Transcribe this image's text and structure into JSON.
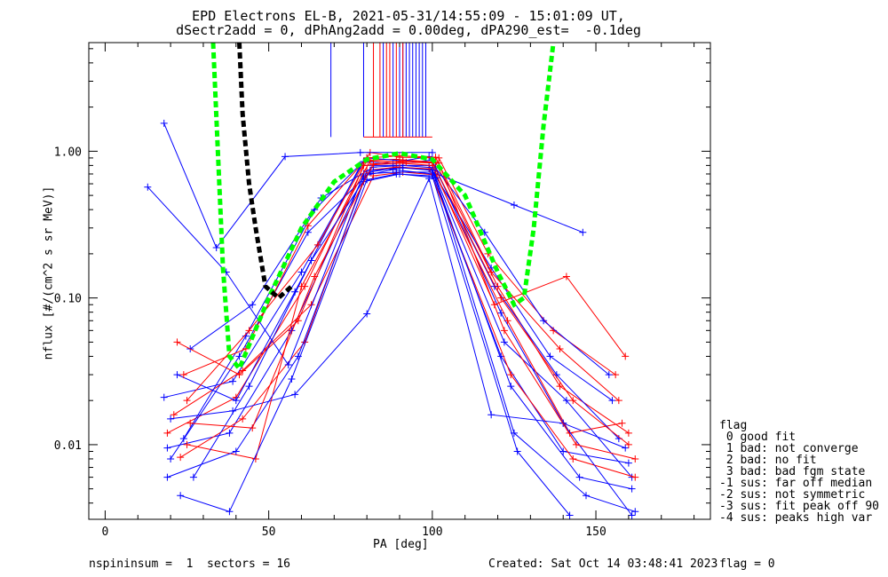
{
  "title": {
    "line1": "EPD Electrons EL-B, 2021-05-31/14:55:09 - 15:01:09 UT,",
    "line2": "dSectr2add = 0, dPhAng2add = 0.00deg, dPA290_est=  -0.1deg"
  },
  "footer": {
    "left": "nspininsum =  1  sectors = 16",
    "created": "Created: Sat Oct 14 03:48:41 2023",
    "flag": "flag = 0"
  },
  "legend": {
    "title": "flag",
    "items": [
      " 0 good fit",
      " 1 bad: not converge",
      " 2 bad: no fit",
      " 3 bad: bad fgm state",
      "-1 sus: far off median",
      "-2 sus: not symmetric",
      "-3 sus: fit peak off 90",
      "-4 sus: peaks high var"
    ]
  },
  "colors": {
    "series_blue": "#0000ff",
    "series_red": "#ff0000",
    "fit_green": "#00ff00",
    "fit_black": "#000000"
  },
  "chart_data": {
    "type": "line",
    "xlabel": "PA [deg]",
    "ylabel": "nflux [#/(cm^2 s sr MeV)]",
    "xlim": [
      -5,
      185
    ],
    "ylim": [
      0.0031,
      5.5
    ],
    "yscale": "log",
    "xticks": [
      0,
      50,
      100,
      150
    ],
    "yticks": [
      {
        "value": 1.0,
        "label": "1.00"
      },
      {
        "value": 0.1,
        "label": "0.10"
      },
      {
        "value": 0.01,
        "label": "0.01"
      }
    ],
    "grid": false,
    "legend_position": "right-bottom outside",
    "blue_spikes_x": [
      69,
      79,
      85,
      88,
      90,
      91,
      92,
      93,
      94,
      95,
      96,
      97,
      98
    ],
    "red_spikes_x": [
      82,
      84,
      86,
      87,
      89,
      91
    ],
    "series": [
      {
        "color": "blue",
        "points": [
          [
            18,
            0.021
          ],
          [
            39,
            0.027
          ],
          [
            60,
            0.15
          ],
          [
            79,
            0.85
          ],
          [
            88,
            0.82
          ],
          [
            100,
            0.87
          ],
          [
            121,
            0.079
          ],
          [
            140,
            0.014
          ],
          [
            159,
            0.0095
          ]
        ]
      },
      {
        "color": "red",
        "points": [
          [
            19,
            0.012
          ],
          [
            40,
            0.021
          ],
          [
            61,
            0.12
          ],
          [
            80,
            0.87
          ],
          [
            89,
            0.88
          ],
          [
            101,
            0.84
          ],
          [
            120,
            0.12
          ],
          [
            139,
            0.025
          ],
          [
            160,
            0.012
          ]
        ]
      },
      {
        "color": "blue",
        "points": [
          [
            20,
            0.008
          ],
          [
            41,
            0.04
          ],
          [
            62,
            0.28
          ],
          [
            81,
            0.72
          ],
          [
            90,
            0.78
          ],
          [
            100,
            0.75
          ],
          [
            122,
            0.05
          ],
          [
            141,
            0.02
          ],
          [
            161,
            0.006
          ]
        ]
      },
      {
        "color": "red",
        "points": [
          [
            21,
            0.016
          ],
          [
            42,
            0.032
          ],
          [
            63,
            0.09
          ],
          [
            82,
            0.68
          ],
          [
            91,
            0.72
          ],
          [
            101,
            0.69
          ],
          [
            123,
            0.07
          ],
          [
            142,
            0.012
          ],
          [
            158,
            0.014
          ]
        ]
      },
      {
        "color": "blue",
        "points": [
          [
            22,
            0.03
          ],
          [
            40,
            0.02
          ],
          [
            58,
            0.11
          ],
          [
            78,
            0.8
          ],
          [
            90,
            0.8
          ],
          [
            99,
            0.8
          ],
          [
            118,
            0.16
          ],
          [
            136,
            0.04
          ],
          [
            155,
            0.02
          ]
        ]
      },
      {
        "color": "blue",
        "points": [
          [
            24,
            0.011
          ],
          [
            43,
            0.055
          ],
          [
            64,
            0.4
          ],
          [
            80,
            0.9
          ],
          [
            91,
            0.86
          ],
          [
            99,
            0.92
          ],
          [
            119,
            0.12
          ],
          [
            138,
            0.03
          ],
          [
            157,
            0.011
          ]
        ]
      },
      {
        "color": "red",
        "points": [
          [
            25,
            0.02
          ],
          [
            44,
            0.06
          ],
          [
            65,
            0.23
          ],
          [
            81,
            0.98
          ],
          [
            90,
            0.91
          ],
          [
            102,
            0.9
          ],
          [
            117,
            0.2
          ],
          [
            137,
            0.06
          ],
          [
            156,
            0.03
          ]
        ]
      },
      {
        "color": "blue",
        "points": [
          [
            19,
            0.0095
          ],
          [
            38,
            0.012
          ],
          [
            57,
            0.06
          ],
          [
            79,
            0.68
          ],
          [
            88,
            0.75
          ],
          [
            100,
            0.7
          ],
          [
            121,
            0.04
          ],
          [
            140,
            0.009
          ],
          [
            160,
            0.0075
          ]
        ]
      },
      {
        "color": "red",
        "points": [
          [
            23,
            0.0082
          ],
          [
            42,
            0.015
          ],
          [
            61,
            0.05
          ],
          [
            80,
            0.74
          ],
          [
            89,
            0.78
          ],
          [
            99,
            0.76
          ],
          [
            124,
            0.03
          ],
          [
            143,
            0.008
          ],
          [
            162,
            0.006
          ]
        ]
      },
      {
        "color": "blue",
        "points": [
          [
            26,
            0.045
          ],
          [
            45,
            0.09
          ],
          [
            66,
            0.48
          ],
          [
            82,
            0.78
          ],
          [
            91,
            0.8
          ],
          [
            101,
            0.77
          ],
          [
            116,
            0.28
          ],
          [
            134,
            0.07
          ],
          [
            154,
            0.03
          ]
        ]
      },
      {
        "color": "blue",
        "points": [
          [
            13,
            0.57
          ],
          [
            37,
            0.15
          ],
          [
            56,
            0.035
          ],
          [
            79,
            0.7
          ],
          [
            89,
            0.72
          ],
          [
            100,
            0.72
          ],
          [
            125,
            0.43
          ],
          [
            146,
            0.28
          ]
        ]
      },
      {
        "color": "blue",
        "points": [
          [
            18,
            1.55
          ],
          [
            34,
            0.22
          ],
          [
            55,
            0.92
          ],
          [
            78,
            0.98
          ],
          [
            100,
            0.98
          ]
        ]
      },
      {
        "color": "red",
        "points": [
          [
            22,
            0.05
          ],
          [
            41,
            0.03
          ],
          [
            59,
            0.07
          ],
          [
            79,
            0.8
          ],
          [
            90,
            0.83
          ],
          [
            100,
            0.8
          ],
          [
            119,
            0.09
          ],
          [
            141,
            0.14
          ],
          [
            159,
            0.04
          ]
        ]
      },
      {
        "color": "blue",
        "points": [
          [
            20,
            0.015
          ],
          [
            39,
            0.017
          ],
          [
            58,
            0.022
          ],
          [
            80,
            0.078
          ],
          [
            99,
            0.65
          ],
          [
            118,
            0.016
          ],
          [
            140,
            0.014
          ],
          [
            161,
            0.0033
          ]
        ]
      },
      {
        "color": "red",
        "points": [
          [
            25,
            0.01
          ],
          [
            46,
            0.008
          ],
          [
            60,
            0.12
          ],
          [
            81,
            0.86
          ],
          [
            92,
            0.84
          ],
          [
            102,
            0.83
          ],
          [
            122,
            0.06
          ],
          [
            144,
            0.01
          ],
          [
            162,
            0.008
          ]
        ]
      },
      {
        "color": "blue",
        "points": [
          [
            27,
            0.006
          ],
          [
            44,
            0.025
          ],
          [
            63,
            0.18
          ],
          [
            81,
            0.74
          ],
          [
            91,
            0.77
          ],
          [
            100,
            0.74
          ],
          [
            124,
            0.025
          ],
          [
            145,
            0.006
          ],
          [
            161,
            0.005
          ]
        ]
      },
      {
        "color": "red",
        "points": [
          [
            24,
            0.03
          ],
          [
            43,
            0.045
          ],
          [
            62,
            0.31
          ],
          [
            80,
            0.9
          ],
          [
            90,
            0.93
          ],
          [
            101,
            0.91
          ],
          [
            118,
            0.15
          ],
          [
            139,
            0.045
          ],
          [
            157,
            0.02
          ]
        ]
      },
      {
        "color": "blue",
        "points": [
          [
            19,
            0.006
          ],
          [
            40,
            0.009
          ],
          [
            59,
            0.04
          ],
          [
            79,
            0.62
          ],
          [
            90,
            0.7
          ],
          [
            101,
            0.66
          ],
          [
            125,
            0.012
          ],
          [
            147,
            0.0045
          ],
          [
            162,
            0.0035
          ]
        ]
      },
      {
        "color": "blue",
        "points": [
          [
            23,
            0.0045
          ],
          [
            38,
            0.0035
          ],
          [
            57,
            0.028
          ],
          [
            80,
            0.64
          ],
          [
            89,
            0.7
          ],
          [
            100,
            0.68
          ],
          [
            126,
            0.009
          ],
          [
            142,
            0.0033
          ]
        ]
      },
      {
        "color": "red",
        "points": [
          [
            26,
            0.014
          ],
          [
            45,
            0.013
          ],
          [
            64,
            0.14
          ],
          [
            82,
            0.82
          ],
          [
            91,
            0.86
          ],
          [
            100,
            0.84
          ],
          [
            121,
            0.1
          ],
          [
            143,
            0.02
          ],
          [
            160,
            0.01
          ]
        ]
      }
    ],
    "fit_curves": [
      {
        "color": "green",
        "style": "dashed",
        "points": [
          [
            33,
            5.5
          ],
          [
            36,
            0.16
          ],
          [
            38,
            0.04
          ],
          [
            41,
            0.033
          ],
          [
            50,
            0.1
          ],
          [
            60,
            0.3
          ],
          [
            70,
            0.62
          ],
          [
            80,
            0.88
          ],
          [
            90,
            0.97
          ],
          [
            100,
            0.88
          ],
          [
            110,
            0.5
          ],
          [
            120,
            0.15
          ],
          [
            125,
            0.09
          ],
          [
            128,
            0.1
          ],
          [
            131,
            0.3
          ],
          [
            134,
            1.5
          ],
          [
            137,
            5.5
          ]
        ]
      },
      {
        "color": "black",
        "style": "dashed",
        "points": [
          [
            41,
            5.5
          ],
          [
            42,
            1.8
          ],
          [
            44,
            0.6
          ],
          [
            46,
            0.3
          ],
          [
            49,
            0.12
          ],
          [
            53,
            0.1
          ],
          [
            57,
            0.12
          ]
        ]
      }
    ]
  }
}
